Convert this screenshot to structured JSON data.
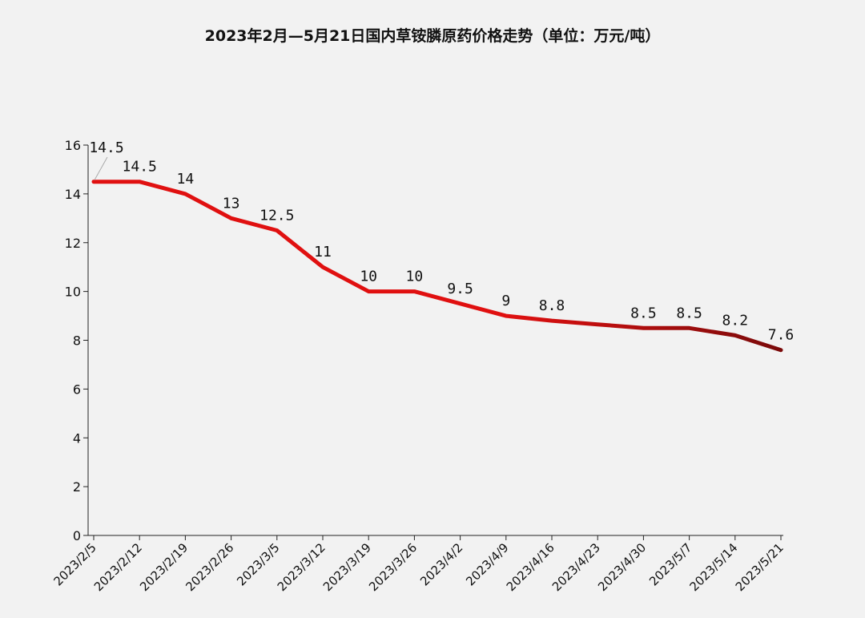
{
  "chart_data": {
    "type": "line",
    "title": "2023年2月—5月21日国内草铵膦原药价格走势（单位：万元/吨）",
    "xlabel": "",
    "ylabel": "",
    "ylim": [
      0,
      16
    ],
    "yticks": [
      0,
      2,
      4,
      6,
      8,
      10,
      12,
      14,
      16
    ],
    "grid": false,
    "legend": "none",
    "categories": [
      "2023/2/5",
      "2023/2/12",
      "2023/2/19",
      "2023/2/26",
      "2023/3/5",
      "2023/3/12",
      "2023/3/19",
      "2023/3/26",
      "2023/4/2",
      "2023/4/9",
      "2023/4/16",
      "2023/4/23",
      "2023/4/30",
      "2023/5/7",
      "2023/5/14",
      "2023/5/21"
    ],
    "series": [
      {
        "values": [
          14.5,
          14.5,
          14,
          13,
          12.5,
          11,
          10,
          10,
          9.5,
          9,
          8.8,
          8.65,
          8.5,
          8.5,
          8.2,
          7.6
        ],
        "labels": [
          "14.5",
          "14.5",
          "14",
          "13",
          "12.5",
          "11",
          "10",
          "10",
          "9.5",
          "9",
          "8.8",
          "",
          "8.5",
          "8.5",
          "8.2",
          "7.6"
        ]
      }
    ],
    "colors": {
      "line_start": "#e01010",
      "line_end": "#7a0a0a",
      "background": "#f2f2f2"
    }
  }
}
